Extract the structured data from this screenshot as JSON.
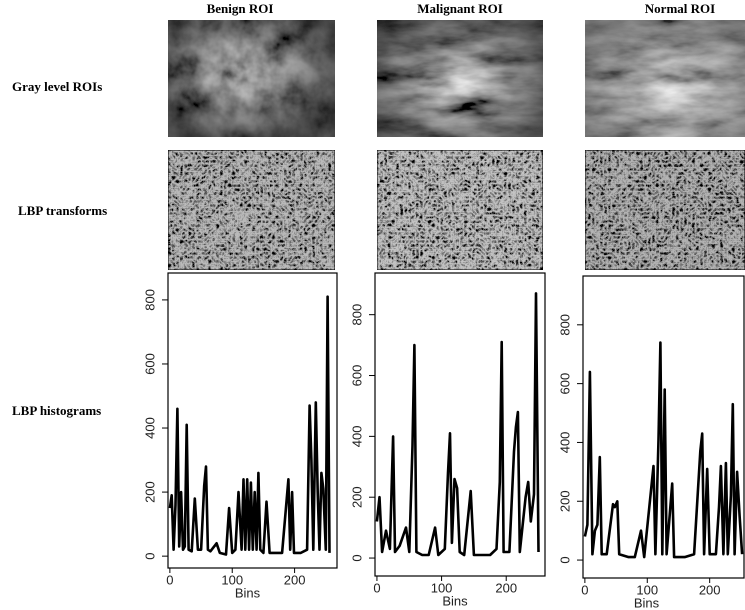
{
  "columns": [
    "Benign ROI",
    "Malignant ROI",
    "Normal ROI"
  ],
  "rows": [
    "Gray level ROIs",
    "LBP transforms",
    "LBP histograms"
  ],
  "chart_data": [
    {
      "type": "line",
      "xlabel": "Bins",
      "color": "#000000",
      "x": [
        0,
        3,
        6,
        9,
        12,
        15,
        18,
        21,
        24,
        27,
        30,
        35,
        40,
        45,
        50,
        55,
        58,
        61,
        65,
        75,
        80,
        90,
        95,
        100,
        105,
        110,
        115,
        118,
        121,
        124,
        127,
        130,
        133,
        136,
        139,
        142,
        145,
        150,
        155,
        160,
        170,
        180,
        190,
        193,
        196,
        199,
        210,
        220,
        224,
        227,
        230,
        234,
        237,
        240,
        243,
        246,
        250,
        253,
        256
      ],
      "values": [
        150,
        190,
        20,
        160,
        460,
        30,
        200,
        20,
        30,
        410,
        20,
        15,
        180,
        20,
        20,
        220,
        280,
        20,
        15,
        40,
        10,
        5,
        150,
        10,
        20,
        200,
        20,
        240,
        20,
        240,
        20,
        230,
        20,
        200,
        20,
        260,
        20,
        10,
        170,
        10,
        10,
        10,
        240,
        20,
        200,
        10,
        10,
        20,
        470,
        300,
        20,
        480,
        200,
        20,
        260,
        210,
        20,
        810,
        10
      ],
      "xlim": [
        -3,
        268
      ],
      "ylim": [
        -37,
        884
      ],
      "xticks": [
        0,
        100,
        200
      ],
      "yticks": [
        0,
        200,
        400,
        600,
        800
      ]
    },
    {
      "type": "line",
      "xlabel": "Bins",
      "color": "#000000",
      "x": [
        0,
        4,
        8,
        14,
        20,
        25,
        28,
        35,
        45,
        50,
        55,
        58,
        61,
        70,
        80,
        90,
        95,
        105,
        110,
        113,
        116,
        120,
        124,
        128,
        135,
        145,
        150,
        160,
        175,
        185,
        190,
        193,
        196,
        205,
        212,
        215,
        218,
        221,
        230,
        234,
        238,
        243,
        246,
        250
      ],
      "values": [
        120,
        200,
        20,
        90,
        30,
        400,
        20,
        40,
        100,
        20,
        370,
        700,
        20,
        10,
        10,
        100,
        10,
        30,
        280,
        410,
        50,
        260,
        230,
        20,
        10,
        220,
        10,
        10,
        10,
        30,
        250,
        710,
        20,
        20,
        350,
        430,
        480,
        20,
        200,
        250,
        120,
        210,
        870,
        20
      ],
      "xlim": [
        -3,
        260
      ],
      "ylim": [
        -59,
        937
      ],
      "xticks": [
        0,
        100,
        200
      ],
      "yticks": [
        0,
        200,
        400,
        600,
        800
      ]
    },
    {
      "type": "line",
      "xlabel": "Bins",
      "color": "#000000",
      "x": [
        0,
        4,
        8,
        12,
        16,
        20,
        24,
        27,
        35,
        45,
        48,
        52,
        55,
        70,
        80,
        90,
        95,
        110,
        113,
        118,
        121,
        124,
        128,
        131,
        140,
        143,
        160,
        175,
        185,
        188,
        191,
        196,
        200,
        210,
        215,
        218,
        222,
        226,
        229,
        234,
        237,
        240,
        244,
        248,
        252
      ],
      "values": [
        80,
        120,
        640,
        20,
        100,
        120,
        350,
        20,
        20,
        190,
        180,
        200,
        20,
        10,
        10,
        100,
        10,
        320,
        20,
        410,
        740,
        20,
        580,
        20,
        260,
        10,
        10,
        20,
        370,
        430,
        20,
        310,
        20,
        20,
        180,
        320,
        20,
        330,
        20,
        220,
        530,
        20,
        300,
        150,
        20
      ],
      "xlim": [
        -3,
        255
      ],
      "ylim": [
        -61,
        966
      ],
      "xticks": [
        0,
        100,
        200
      ],
      "yticks": [
        0,
        200,
        400,
        600,
        800
      ]
    }
  ]
}
